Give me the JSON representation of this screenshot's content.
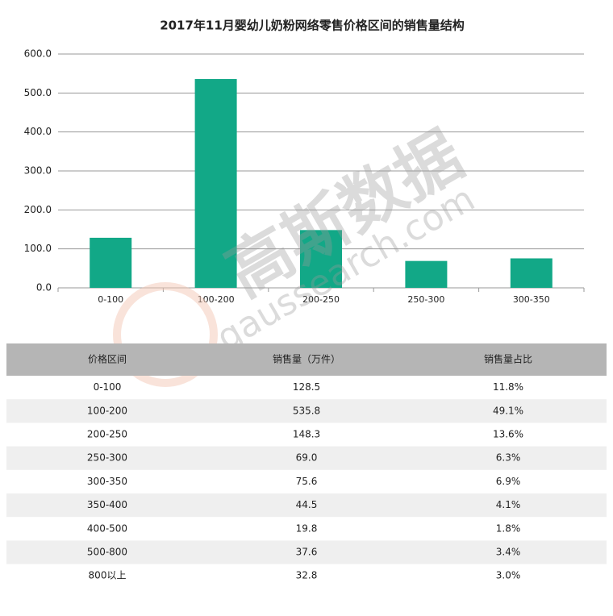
{
  "chart_data": {
    "type": "bar",
    "title": "2017年11月婴幼儿奶粉网络零售价格区间的销售量结构",
    "categories": [
      "0-100",
      "100-200",
      "200-250",
      "250-300",
      "300-350"
    ],
    "values": [
      128.5,
      535.8,
      148.3,
      69.0,
      75.6
    ],
    "color": "#12a887",
    "ylim": [
      0,
      600
    ],
    "yticks": [
      {
        "value": 0,
        "label": "0.0"
      },
      {
        "value": 100,
        "label": "100.0"
      },
      {
        "value": 200,
        "label": "200.0"
      },
      {
        "value": 300,
        "label": "300.0"
      },
      {
        "value": 400,
        "label": "400.0"
      },
      {
        "value": 500,
        "label": "500.0"
      },
      {
        "value": 600,
        "label": "600.0"
      }
    ],
    "grid": true
  },
  "watermark": {
    "brand": "高斯数据",
    "url": "gaussearch.com"
  },
  "table": {
    "header": [
      "价格区间",
      "销售量（万件）",
      "销售量占比"
    ],
    "rows": [
      [
        "0-100",
        "128.5",
        "11.8%"
      ],
      [
        "100-200",
        "535.8",
        "49.1%"
      ],
      [
        "200-250",
        "148.3",
        "13.6%"
      ],
      [
        "250-300",
        "69.0",
        "6.3%"
      ],
      [
        "300-350",
        "75.6",
        "6.9%"
      ],
      [
        "350-400",
        "44.5",
        "4.1%"
      ],
      [
        "400-500",
        "19.8",
        "1.8%"
      ],
      [
        "500-800",
        "37.6",
        "3.4%"
      ],
      [
        "800以上",
        "32.8",
        "3.0%"
      ]
    ]
  }
}
